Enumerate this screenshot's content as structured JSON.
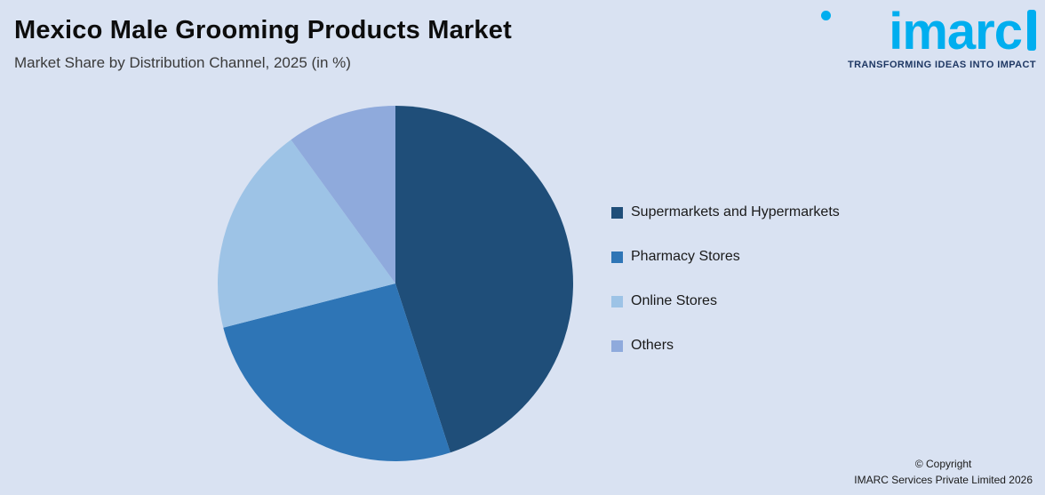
{
  "page": {
    "background": "#d9e2f2",
    "title": "Mexico Male Grooming Products Market",
    "subtitle": "Market Share by Distribution Channel, 2025 (in %)"
  },
  "logo": {
    "text": "imarc",
    "tagline": "TRANSFORMING IDEAS INTO IMPACT",
    "brand_color": "#00aeef",
    "tagline_color": "#1f3864"
  },
  "footer": {
    "copyright_line1": "© Copyright",
    "copyright_line2": "IMARC Services Private Limited 2026"
  },
  "chart_data": {
    "type": "pie",
    "title": "Mexico Male Grooming Products Market",
    "subtitle": "Market Share by Distribution Channel, 2025 (in %)",
    "unit": "%",
    "start_angle_deg": 0,
    "direction": "clockwise",
    "legend_position": "right",
    "categories": [
      "Supermarkets and Hypermarkets",
      "Pharmacy Stores",
      "Online Stores",
      "Others"
    ],
    "values": [
      45,
      26,
      19,
      10
    ],
    "slices": [
      {
        "label": "Supermarkets and Hypermarkets",
        "value": 45,
        "color": "#1f4e79"
      },
      {
        "label": "Pharmacy Stores",
        "value": 26,
        "color": "#2e75b6"
      },
      {
        "label": "Online Stores",
        "value": 19,
        "color": "#9dc3e6"
      },
      {
        "label": "Others",
        "value": 10,
        "color": "#8faadc"
      }
    ]
  }
}
